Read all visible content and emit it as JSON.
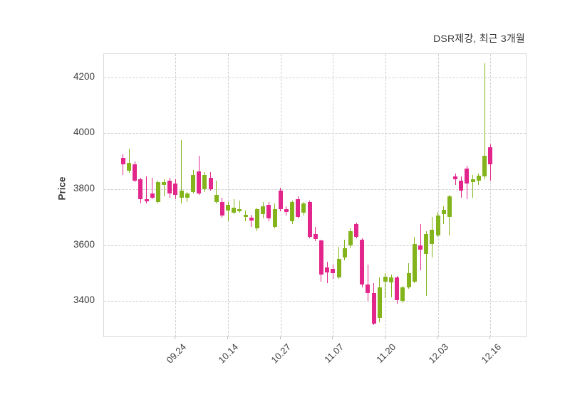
{
  "title": "DSR제강, 최근 3개월",
  "y_axis": {
    "label": "Price",
    "ticks": [
      "4200",
      "4000",
      "3800",
      "3600",
      "3400"
    ]
  },
  "x_axis": {
    "tick_labels": [
      "09.24",
      "10.14",
      "10.27",
      "11.07",
      "11.20",
      "12.03",
      "12.16"
    ]
  },
  "colors": {
    "up_candle": "#83b41c",
    "down_candle": "#e3268b",
    "grid": "#cfcfcf",
    "plot_border": "#d9d9d9",
    "text": "#3b3b3b",
    "background": "#ffffff"
  },
  "chart_data": {
    "type": "candlestick",
    "title": "DSR제강, 최근 3개월",
    "xlabel": "",
    "ylabel": "Price",
    "grid": "dashed",
    "y_ticks": [
      4200,
      4000,
      3800,
      3600,
      3400
    ],
    "y_range": [
      3274,
      4283
    ],
    "x_tick_labels": [
      "09.24",
      "10.14",
      "10.27",
      "11.07",
      "11.20",
      "12.03",
      "12.16"
    ],
    "x_tick_indices": [
      9,
      18,
      27,
      36,
      45,
      54,
      63
    ],
    "candle_format": [
      "open",
      "high",
      "low",
      "close"
    ],
    "up_color_rule": "close >= open is green, close < open is pink",
    "candles": [
      [
        3913,
        3926,
        3850,
        3888
      ],
      [
        3865,
        3945,
        3858,
        3895
      ],
      [
        3890,
        3900,
        3825,
        3830
      ],
      [
        3835,
        3840,
        3750,
        3765
      ],
      [
        3765,
        3845,
        3750,
        3758
      ],
      [
        3785,
        3840,
        3765,
        3770
      ],
      [
        3755,
        3830,
        3750,
        3825
      ],
      [
        3815,
        3835,
        3775,
        3825
      ],
      [
        3830,
        3840,
        3770,
        3785
      ],
      [
        3820,
        3835,
        3765,
        3780
      ],
      [
        3770,
        3975,
        3750,
        3795
      ],
      [
        3770,
        3790,
        3755,
        3785
      ],
      [
        3790,
        3870,
        3785,
        3850
      ],
      [
        3865,
        3920,
        3780,
        3785
      ],
      [
        3800,
        3860,
        3790,
        3850
      ],
      [
        3840,
        3862,
        3795,
        3800
      ],
      [
        3755,
        3830,
        3750,
        3780
      ],
      [
        3755,
        3770,
        3698,
        3706
      ],
      [
        3725,
        3755,
        3685,
        3745
      ],
      [
        3715,
        3765,
        3710,
        3735
      ],
      [
        3720,
        3760,
        3715,
        3730
      ],
      [
        3700,
        3725,
        3685,
        3708
      ],
      [
        3698,
        3710,
        3665,
        3687
      ],
      [
        3660,
        3735,
        3650,
        3728
      ],
      [
        3710,
        3755,
        3695,
        3740
      ],
      [
        3745,
        3755,
        3685,
        3695
      ],
      [
        3665,
        3750,
        3660,
        3730
      ],
      [
        3795,
        3805,
        3720,
        3730
      ],
      [
        3728,
        3740,
        3705,
        3719
      ],
      [
        3685,
        3760,
        3675,
        3755
      ],
      [
        3765,
        3775,
        3695,
        3700
      ],
      [
        3715,
        3755,
        3705,
        3750
      ],
      [
        3755,
        3760,
        3625,
        3630
      ],
      [
        3640,
        3665,
        3615,
        3622
      ],
      [
        3618,
        3620,
        3470,
        3495
      ],
      [
        3520,
        3542,
        3465,
        3503
      ],
      [
        3516,
        3530,
        3480,
        3499
      ],
      [
        3485,
        3595,
        3480,
        3550
      ],
      [
        3555,
        3620,
        3545,
        3590
      ],
      [
        3600,
        3660,
        3590,
        3650
      ],
      [
        3675,
        3680,
        3625,
        3630
      ],
      [
        3620,
        3625,
        3450,
        3460
      ],
      [
        3460,
        3530,
        3400,
        3430
      ],
      [
        3430,
        3465,
        3315,
        3320
      ],
      [
        3340,
        3485,
        3325,
        3450
      ],
      [
        3470,
        3500,
        3410,
        3487
      ],
      [
        3467,
        3495,
        3415,
        3485
      ],
      [
        3485,
        3490,
        3390,
        3405
      ],
      [
        3400,
        3455,
        3393,
        3450
      ],
      [
        3450,
        3535,
        3445,
        3500
      ],
      [
        3470,
        3630,
        3465,
        3605
      ],
      [
        3600,
        3675,
        3510,
        3585
      ],
      [
        3570,
        3650,
        3420,
        3640
      ],
      [
        3605,
        3700,
        3555,
        3655
      ],
      [
        3635,
        3720,
        3630,
        3707
      ],
      [
        3710,
        3740,
        3675,
        3726
      ],
      [
        3700,
        3780,
        3635,
        3775
      ],
      [
        3845,
        3855,
        3815,
        3835
      ],
      [
        3830,
        3845,
        3770,
        3795
      ],
      [
        3875,
        3885,
        3765,
        3820
      ],
      [
        3825,
        3850,
        3770,
        3835
      ],
      [
        3830,
        3855,
        3815,
        3848
      ],
      [
        3845,
        4250,
        3835,
        3920
      ],
      [
        3950,
        3960,
        3830,
        3890
      ]
    ]
  }
}
